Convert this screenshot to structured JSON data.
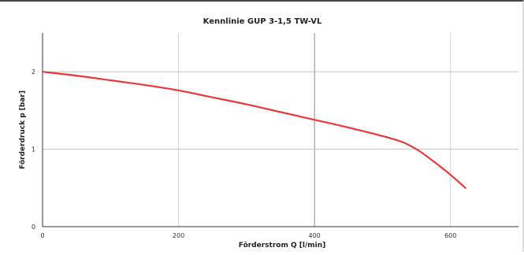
{
  "chart_data": {
    "type": "line",
    "title": "Kennlinie GUP 3-1,5 TW-VL",
    "xlabel": "Förderstrom Q [l/min]",
    "ylabel": "Förderdruck p [bar]",
    "xlim": [
      0,
      700
    ],
    "ylim": [
      0,
      2.5
    ],
    "x_ticks": [
      0,
      200,
      400,
      600
    ],
    "x_tick_labels": [
      "0",
      "200",
      "400",
      "600"
    ],
    "y_ticks": [
      0,
      1,
      2
    ],
    "y_tick_labels": [
      "0",
      "1",
      "2"
    ],
    "grid": true,
    "legend": false,
    "series": [
      {
        "color": "#e8383d",
        "x": [
          0,
          50,
          100,
          150,
          200,
          250,
          300,
          350,
          400,
          450,
          500,
          530,
          550,
          565,
          580,
          600,
          622
        ],
        "y": [
          2.0,
          1.95,
          1.89,
          1.83,
          1.76,
          1.67,
          1.58,
          1.48,
          1.38,
          1.28,
          1.17,
          1.09,
          1.0,
          0.91,
          0.81,
          0.67,
          0.5
        ]
      }
    ]
  }
}
